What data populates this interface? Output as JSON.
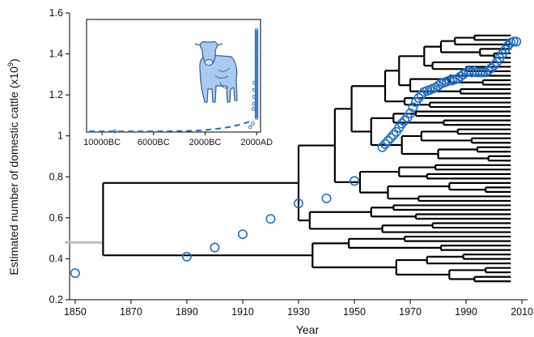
{
  "chart_data": {
    "type": "scatter",
    "main": {
      "xlabel": "Year",
      "ylabel": "Estimated number of domestic cattle (x10",
      "ylabel_exp": "9",
      "ylabel_close": ")",
      "xlim": [
        1848,
        2012
      ],
      "ylim": [
        0.2,
        1.6
      ],
      "xticks": [
        1850,
        1870,
        1890,
        1910,
        1930,
        1950,
        1970,
        1990,
        2010
      ],
      "yticks": [
        0.2,
        0.4,
        0.6,
        0.8,
        1.0,
        1.2,
        1.4,
        1.6
      ],
      "ytick_labels": [
        "0.2",
        "0.4",
        "0.6",
        "0.8",
        "1",
        "1.2",
        "1.4",
        "1.6"
      ],
      "series": [
        {
          "marker": "open-circle",
          "color": "#1f6fc4",
          "points": [
            [
              1850,
              0.33
            ],
            [
              1890,
              0.41
            ],
            [
              1900,
              0.455
            ],
            [
              1910,
              0.52
            ],
            [
              1920,
              0.595
            ],
            [
              1930,
              0.67
            ],
            [
              1940,
              0.695
            ],
            [
              1950,
              0.78
            ],
            [
              1960,
              0.945
            ],
            [
              1961,
              0.96
            ],
            [
              1962,
              0.975
            ],
            [
              1963,
              0.99
            ],
            [
              1964,
              1.005
            ],
            [
              1965,
              1.02
            ],
            [
              1966,
              1.04
            ],
            [
              1967,
              1.06
            ],
            [
              1968,
              1.075
            ],
            [
              1969,
              1.09
            ],
            [
              1970,
              1.11
            ],
            [
              1971,
              1.14
            ],
            [
              1972,
              1.165
            ],
            [
              1973,
              1.185
            ],
            [
              1974,
              1.2
            ],
            [
              1975,
              1.215
            ],
            [
              1976,
              1.22
            ],
            [
              1977,
              1.225
            ],
            [
              1978,
              1.23
            ],
            [
              1979,
              1.235
            ],
            [
              1980,
              1.245
            ],
            [
              1981,
              1.255
            ],
            [
              1982,
              1.26
            ],
            [
              1983,
              1.265
            ],
            [
              1984,
              1.27
            ],
            [
              1985,
              1.27
            ],
            [
              1986,
              1.275
            ],
            [
              1987,
              1.28
            ],
            [
              1988,
              1.29
            ],
            [
              1989,
              1.3
            ],
            [
              1990,
              1.31
            ],
            [
              1991,
              1.315
            ],
            [
              1992,
              1.31
            ],
            [
              1993,
              1.315
            ],
            [
              1994,
              1.31
            ],
            [
              1995,
              1.31
            ],
            [
              1996,
              1.31
            ],
            [
              1997,
              1.31
            ],
            [
              1998,
              1.32
            ],
            [
              1999,
              1.33
            ],
            [
              2000,
              1.345
            ],
            [
              2001,
              1.36
            ],
            [
              2002,
              1.38
            ],
            [
              2003,
              1.4
            ],
            [
              2004,
              1.42
            ],
            [
              2005,
              1.44
            ],
            [
              2006,
              1.455
            ],
            [
              2007,
              1.46
            ],
            [
              2008,
              1.46
            ]
          ]
        }
      ],
      "reference_line": {
        "y": 0.48,
        "x_from": 1848,
        "x_to": 1852,
        "color": "#c0c0c0"
      },
      "tree": {
        "type": "dendrogram",
        "color": "#000000",
        "note": "phylogenetic-style branching tree overlaid on the time axis (ultrametric, tips at ~2006)"
      }
    },
    "inset": {
      "xtick_labels": [
        "10000BC",
        "6000BC",
        "2000BC",
        "2000AD"
      ],
      "xticks": [
        -10000,
        -6000,
        -2000,
        2000
      ],
      "xlim": [
        -11200,
        2300
      ],
      "ylim": [
        0,
        1.6
      ],
      "trend": "dashed",
      "points_note": "dense open circles near 2000AD",
      "illustration": "cow-icon",
      "color": "#1f6fc4"
    }
  }
}
